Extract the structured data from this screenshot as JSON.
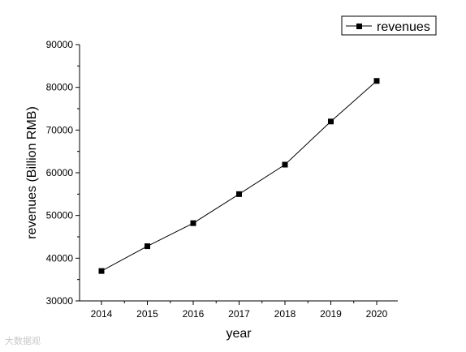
{
  "chart_data": {
    "type": "line",
    "x": [
      "2014",
      "2015",
      "2016",
      "2017",
      "2018",
      "2019",
      "2020"
    ],
    "series": [
      {
        "name": "revenues",
        "values": [
          37000,
          42800,
          48200,
          55000,
          61900,
          72000,
          81500
        ]
      }
    ],
    "xlabel": "year",
    "ylabel": "revenues (Billion RMB)",
    "ylim": [
      30000,
      90000
    ],
    "yticks": [
      30000,
      40000,
      50000,
      60000,
      70000,
      80000,
      90000
    ],
    "grid": false,
    "legend_position": "top-right",
    "marker": "square",
    "line_color": "#000000"
  },
  "watermark": {
    "text": "大数据观"
  }
}
